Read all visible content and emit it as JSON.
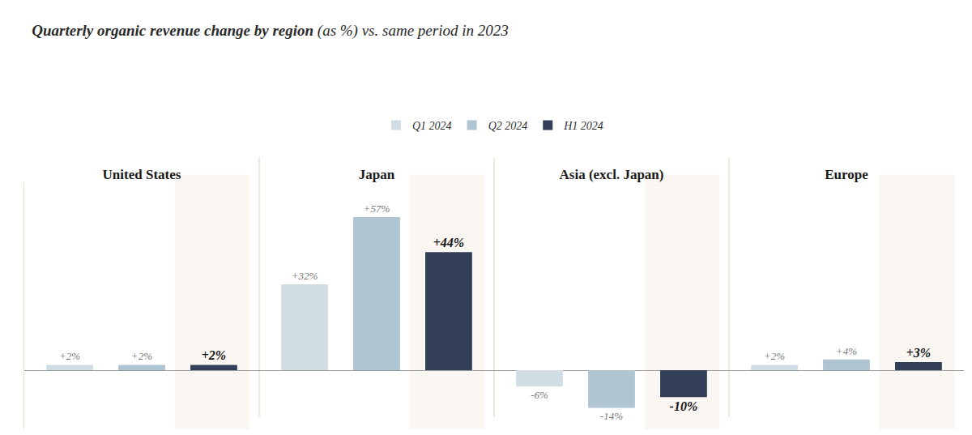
{
  "chart_data": {
    "type": "bar",
    "title": "Quarterly organic revenue change by region",
    "subtitle": "(as %) vs. same period in 2023",
    "categories": [
      "United States",
      "Japan",
      "Asia (excl. Japan)",
      "Europe"
    ],
    "series": [
      {
        "name": "Q1 2024",
        "color": "#d1dde4",
        "values": [
          2,
          32,
          -6,
          2
        ],
        "value_labels": [
          "+2%",
          "+32%",
          "-6%",
          "+2%"
        ]
      },
      {
        "name": "Q2 2024",
        "color": "#afc5d2",
        "values": [
          2,
          57,
          -14,
          4
        ],
        "value_labels": [
          "+2%",
          "+57%",
          "-14%",
          "+4%"
        ]
      },
      {
        "name": "H1 2024",
        "color": "#333f58",
        "values": [
          2,
          44,
          -10,
          3
        ],
        "value_labels": [
          "+2%",
          "+44%",
          "-10%",
          "+3%"
        ]
      }
    ],
    "ylim": [
      -22,
      70
    ],
    "grid": false,
    "legend": "top",
    "data_labels": true,
    "tick_labels": "x"
  }
}
